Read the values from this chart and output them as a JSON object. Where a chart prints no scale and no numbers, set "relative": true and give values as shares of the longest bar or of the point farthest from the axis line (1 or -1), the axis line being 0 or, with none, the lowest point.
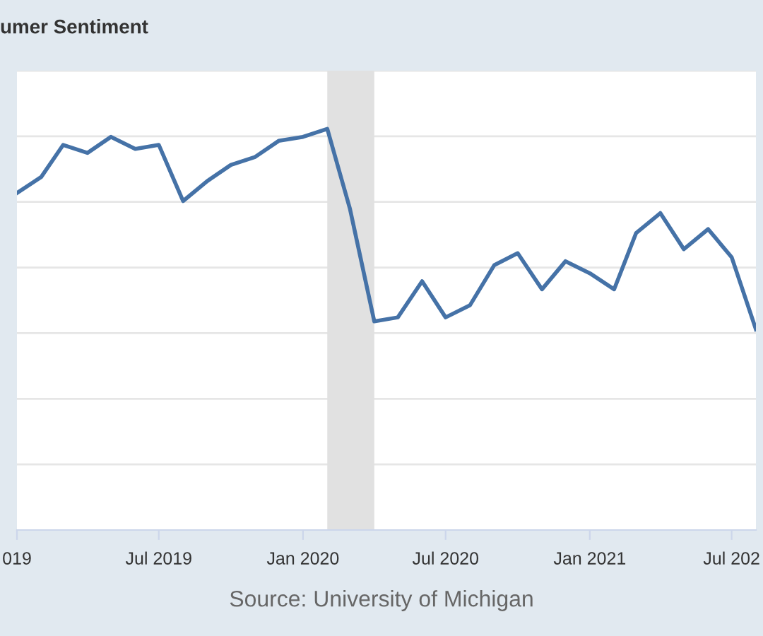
{
  "chart_data": {
    "type": "line",
    "title": "umer Sentiment",
    "relative": true,
    "x": [
      "2019-01",
      "2019-02",
      "2019-03",
      "2019-04",
      "2019-05",
      "2019-06",
      "2019-07",
      "2019-08",
      "2019-09",
      "2019-10",
      "2019-11",
      "2019-12",
      "2020-01",
      "2020-02",
      "2020-03",
      "2020-04",
      "2020-05",
      "2020-06",
      "2020-07",
      "2020-08",
      "2020-09",
      "2020-10",
      "2020-11",
      "2020-12",
      "2021-01",
      "2021-02",
      "2021-03",
      "2021-04",
      "2021-05",
      "2021-06",
      "2021-07",
      "2021-08"
    ],
    "series": [
      {
        "color": "#4572a7",
        "values": [
          0.84,
          0.88,
          0.96,
          0.94,
          0.98,
          0.95,
          0.96,
          0.82,
          0.87,
          0.91,
          0.93,
          0.97,
          0.98,
          1.0,
          0.8,
          0.52,
          0.53,
          0.62,
          0.53,
          0.56,
          0.66,
          0.69,
          0.6,
          0.67,
          0.64,
          0.6,
          0.74,
          0.79,
          0.7,
          0.75,
          0.68,
          0.5
        ]
      }
    ],
    "xlim": [
      "2019-01-01",
      "2021-08-01"
    ],
    "xticks": [
      {
        "value": "2019-01-01",
        "label": "019"
      },
      {
        "value": "2019-07-01",
        "label": "Jul 2019"
      },
      {
        "value": "2020-01-01",
        "label": "Jan 2020"
      },
      {
        "value": "2020-07-01",
        "label": "Jul 2020"
      },
      {
        "value": "2021-01-01",
        "label": "Jan 2021"
      },
      {
        "value": "2021-07-01",
        "label": "Jul 202"
      }
    ],
    "bands": [
      {
        "axis": "x",
        "from": "2020-02-01",
        "to": "2020-04-01",
        "color": "#e1e1e1"
      }
    ],
    "grid": "y",
    "line_style": "solid",
    "marker": "none",
    "annotations": [
      "Source: University of Michigan"
    ]
  }
}
